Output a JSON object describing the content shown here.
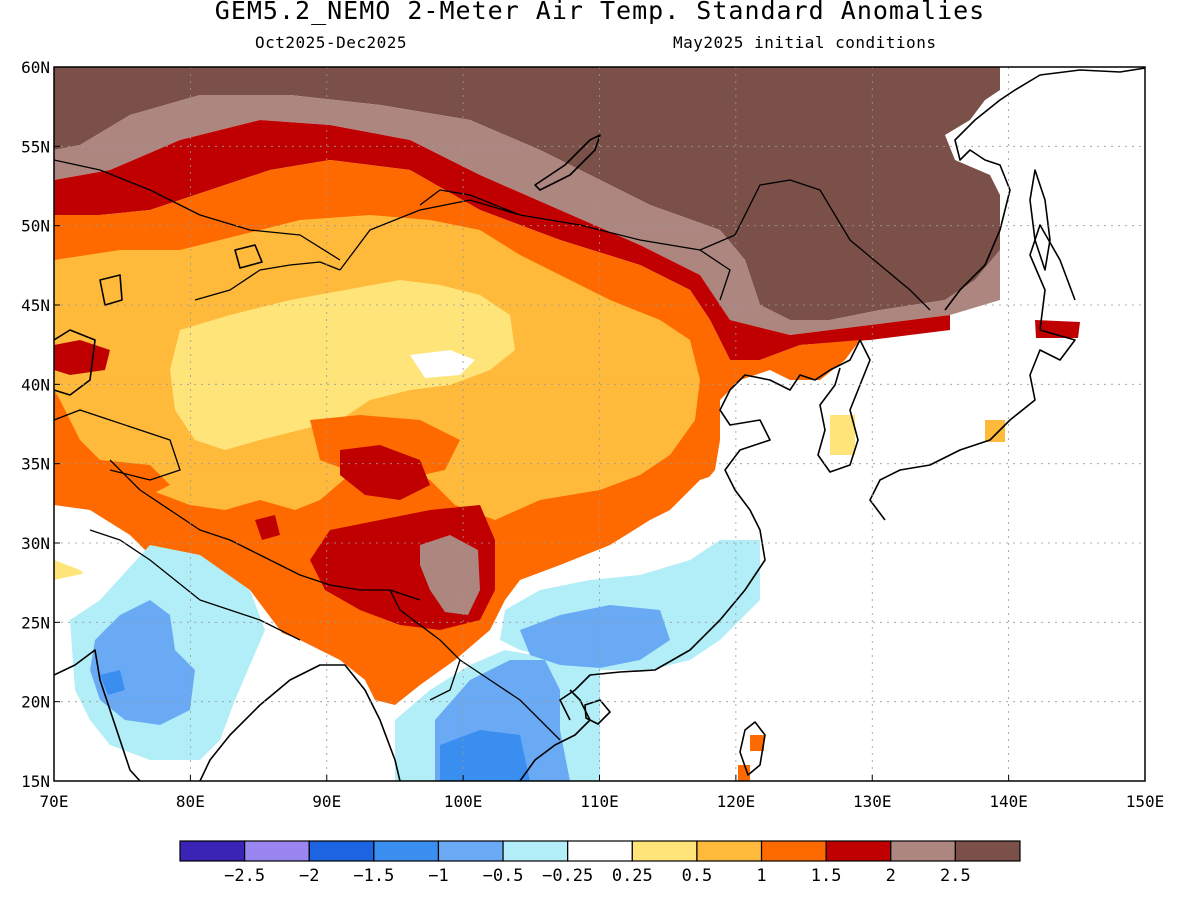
{
  "header": {
    "title": "GEM5.2_NEMO 2-Meter Air Temp. Standard Anomalies",
    "period": "Oct2025-Dec2025",
    "init": "May2025 initial conditions"
  },
  "map": {
    "lon_range": [
      70,
      150
    ],
    "lat_range": [
      15,
      60
    ],
    "lon_ticks": [
      "70E",
      "80E",
      "90E",
      "100E",
      "110E",
      "120E",
      "130E",
      "140E",
      "150E"
    ],
    "lat_ticks": [
      "60N",
      "55N",
      "50N",
      "45N",
      "40N",
      "35N",
      "30N",
      "25N",
      "20N",
      "15N"
    ]
  },
  "legend": {
    "colors": [
      "#3a24b5",
      "#9a86f0",
      "#1c64e2",
      "#3a8ef0",
      "#6aaaf4",
      "#b2eef8",
      "#ffffff",
      "#ffe47a",
      "#ffba3c",
      "#ff6a00",
      "#c00000",
      "#ad8680",
      "#7a5048"
    ],
    "labels": [
      "−2.5",
      "−2",
      "−1.5",
      "−1",
      "−0.5",
      "−0.25",
      "0.25",
      "0.5",
      "1",
      "1.5",
      "2",
      "2.5"
    ]
  },
  "palette": {
    "brown": "#7a5048",
    "tan": "#ad8680",
    "red": "#c00000",
    "orange": "#ff6a00",
    "lorange": "#ffba3c",
    "yellow": "#ffe47a",
    "white": "#ffffff",
    "cyan": "#b2eef8",
    "lblue": "#6aaaf4",
    "blue": "#3a8ef0"
  }
}
